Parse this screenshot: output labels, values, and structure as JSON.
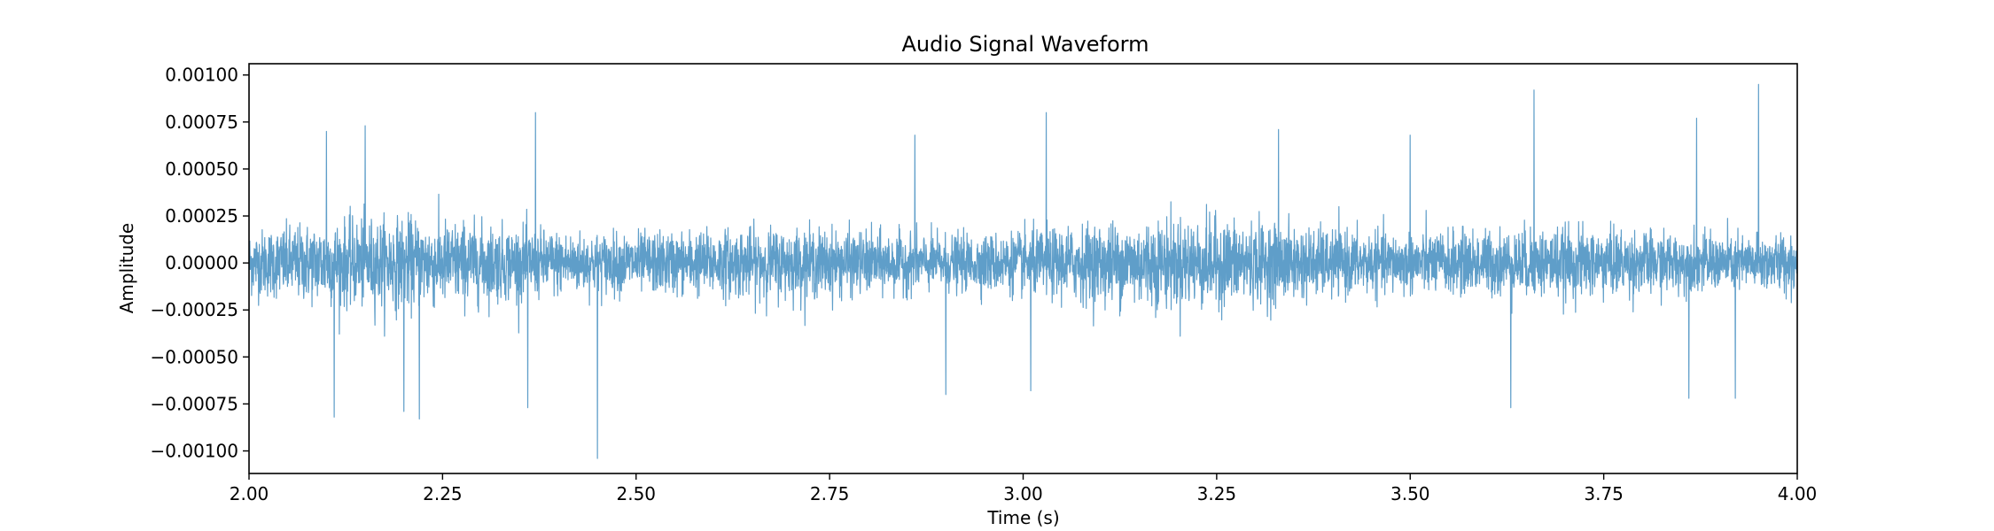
{
  "chart_data": {
    "type": "line",
    "title": "Audio Signal Waveform",
    "xlabel": "Time (s)",
    "ylabel": "Amplitude",
    "xlim": [
      2.0,
      4.0
    ],
    "ylim": [
      -0.00112,
      0.00106
    ],
    "x_ticks": [
      2.0,
      2.25,
      2.5,
      2.75,
      3.0,
      3.25,
      3.5,
      3.75,
      4.0
    ],
    "x_tick_labels": [
      "2.00",
      "2.25",
      "2.50",
      "2.75",
      "3.00",
      "3.25",
      "3.50",
      "3.75",
      "4.00"
    ],
    "y_ticks": [
      -0.001,
      -0.00075,
      -0.0005,
      -0.00025,
      0.0,
      0.00025,
      0.0005,
      0.00075,
      0.001
    ],
    "y_tick_labels": [
      "−0.00100",
      "−0.00075",
      "−0.00050",
      "−0.00025",
      "0.00000",
      "0.00025",
      "0.00050",
      "0.00075",
      "0.00100"
    ],
    "grid": false,
    "line_color": "#5f9ec9",
    "line_width": 1.2,
    "series": [
      {
        "typical_amplitude": 0.00025,
        "peaks": [
          {
            "x": 2.11,
            "y": -0.00082
          },
          {
            "x": 2.1,
            "y": 0.0007
          },
          {
            "x": 2.15,
            "y": 0.00073
          },
          {
            "x": 2.2,
            "y": -0.00079
          },
          {
            "x": 2.22,
            "y": -0.00083
          },
          {
            "x": 2.37,
            "y": 0.0008
          },
          {
            "x": 2.36,
            "y": -0.00077
          },
          {
            "x": 2.45,
            "y": -0.00104
          },
          {
            "x": 2.86,
            "y": 0.00068
          },
          {
            "x": 2.9,
            "y": -0.0007
          },
          {
            "x": 3.03,
            "y": 0.0008
          },
          {
            "x": 3.01,
            "y": -0.00068
          },
          {
            "x": 3.33,
            "y": 0.00071
          },
          {
            "x": 3.5,
            "y": 0.00068
          },
          {
            "x": 3.63,
            "y": -0.00077
          },
          {
            "x": 3.66,
            "y": 0.00092
          },
          {
            "x": 3.87,
            "y": 0.00077
          },
          {
            "x": 3.86,
            "y": -0.00072
          },
          {
            "x": 3.92,
            "y": -0.00072
          },
          {
            "x": 3.95,
            "y": 0.00095
          }
        ]
      }
    ]
  }
}
